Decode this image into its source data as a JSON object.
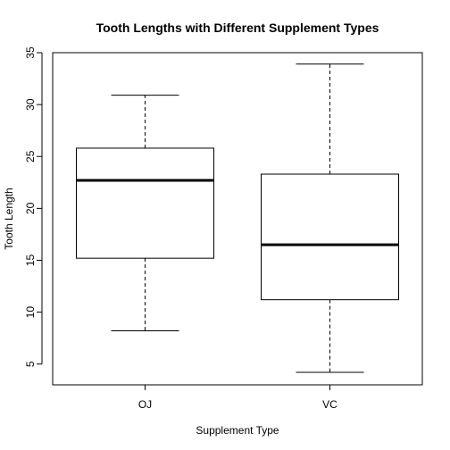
{
  "chart_data": {
    "type": "boxplot",
    "title": "Tooth Lengths with Different Supplement Types",
    "xlabel": "Supplement Type",
    "ylabel": "Tooth Length",
    "categories": [
      "OJ",
      "VC"
    ],
    "boxes": [
      {
        "category": "OJ",
        "min": 8.2,
        "q1": 15.2,
        "median": 22.7,
        "q3": 25.8,
        "max": 30.9
      },
      {
        "category": "VC",
        "min": 4.2,
        "q1": 11.2,
        "median": 16.5,
        "q3": 23.3,
        "max": 33.9
      }
    ],
    "ylim": [
      3,
      35
    ],
    "yticks": [
      5,
      10,
      15,
      20,
      25,
      30,
      35
    ],
    "grid": false,
    "legend": "none"
  }
}
